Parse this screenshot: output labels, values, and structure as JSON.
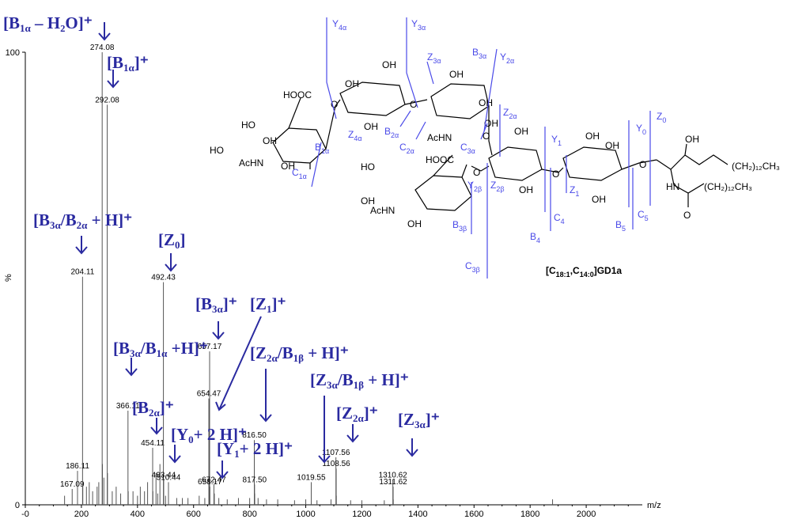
{
  "chart_data": {
    "type": "bar",
    "title": "",
    "xlabel": "m/z",
    "ylabel": "%",
    "xlim": [
      0,
      2200
    ],
    "ylim": [
      0,
      100
    ],
    "x_ticks": [
      "-0",
      "200",
      "400",
      "600",
      "800",
      "1000",
      "1200",
      "1400",
      "1600",
      "1800",
      "2000"
    ],
    "y_ticks": [
      "0",
      "100"
    ],
    "peaks": [
      {
        "x": 167.09,
        "y": 3.5,
        "label": "167.09"
      },
      {
        "x": 186.11,
        "y": 7.5,
        "label": "186.11"
      },
      {
        "x": 204.11,
        "y": 50.4,
        "label": "204.11"
      },
      {
        "x": 274.08,
        "y": 100,
        "label": "274.08"
      },
      {
        "x": 292.08,
        "y": 88.4,
        "label": "292.08"
      },
      {
        "x": 366.11,
        "y": 20.8,
        "label": "366.11"
      },
      {
        "x": 454.11,
        "y": 12.6,
        "label": "454.11"
      },
      {
        "x": 492.43,
        "y": 49.2,
        "label": "492.43"
      },
      {
        "x": 493.44,
        "y": 5.5,
        "label": "493.44"
      },
      {
        "x": 510.44,
        "y": 5.0,
        "label": "510.44"
      },
      {
        "x": 654.47,
        "y": 23.5,
        "label": "654.47"
      },
      {
        "x": 657.17,
        "y": 33.9,
        "label": "657.17"
      },
      {
        "x": 658.17,
        "y": 4.0,
        "label": "658.17"
      },
      {
        "x": 672.47,
        "y": 4.5,
        "label": "672.47"
      },
      {
        "x": 816.5,
        "y": 14.3,
        "label": "816.50"
      },
      {
        "x": 817.5,
        "y": 4.5,
        "label": "817.50"
      },
      {
        "x": 1019.55,
        "y": 5.0,
        "label": "1019.55"
      },
      {
        "x": 1107.56,
        "y": 10.5,
        "label": "1107.56"
      },
      {
        "x": 1108.56,
        "y": 8.0,
        "label": "1108.56"
      },
      {
        "x": 1310.62,
        "y": 5.5,
        "label": "1310.62"
      },
      {
        "x": 1311.62,
        "y": 4.0,
        "label": "1311.62"
      }
    ],
    "minor_peaks": [
      {
        "x": 140,
        "y": 2
      },
      {
        "x": 205,
        "y": 5
      },
      {
        "x": 218,
        "y": 4
      },
      {
        "x": 228,
        "y": 5
      },
      {
        "x": 240,
        "y": 3
      },
      {
        "x": 256,
        "y": 4
      },
      {
        "x": 262,
        "y": 5
      },
      {
        "x": 275,
        "y": 9
      },
      {
        "x": 280,
        "y": 6
      },
      {
        "x": 293,
        "y": 7
      },
      {
        "x": 310,
        "y": 3
      },
      {
        "x": 324,
        "y": 4
      },
      {
        "x": 340,
        "y": 2.5
      },
      {
        "x": 367,
        "y": 3
      },
      {
        "x": 384,
        "y": 3
      },
      {
        "x": 400,
        "y": 2
      },
      {
        "x": 410,
        "y": 4
      },
      {
        "x": 425,
        "y": 3
      },
      {
        "x": 436,
        "y": 5
      },
      {
        "x": 455,
        "y": 3
      },
      {
        "x": 466,
        "y": 7
      },
      {
        "x": 472,
        "y": 2.5
      },
      {
        "x": 480,
        "y": 9
      },
      {
        "x": 500,
        "y": 2
      },
      {
        "x": 540,
        "y": 1.5
      },
      {
        "x": 560,
        "y": 1.5
      },
      {
        "x": 580,
        "y": 1.5
      },
      {
        "x": 620,
        "y": 2
      },
      {
        "x": 640,
        "y": 1.5
      },
      {
        "x": 656,
        "y": 6
      },
      {
        "x": 674,
        "y": 2.5
      },
      {
        "x": 690,
        "y": 1.5
      },
      {
        "x": 720,
        "y": 1.2
      },
      {
        "x": 760,
        "y": 1.5
      },
      {
        "x": 800,
        "y": 1.5
      },
      {
        "x": 818,
        "y": 2.5
      },
      {
        "x": 830,
        "y": 1.5
      },
      {
        "x": 860,
        "y": 1.2
      },
      {
        "x": 900,
        "y": 1.2
      },
      {
        "x": 960,
        "y": 1
      },
      {
        "x": 1000,
        "y": 1.2
      },
      {
        "x": 1040,
        "y": 1
      },
      {
        "x": 1090,
        "y": 1.2
      },
      {
        "x": 1109,
        "y": 2
      },
      {
        "x": 1160,
        "y": 1
      },
      {
        "x": 1200,
        "y": 1
      },
      {
        "x": 1280,
        "y": 1
      },
      {
        "x": 1312,
        "y": 1.2
      },
      {
        "x": 1880,
        "y": 1.2
      }
    ],
    "annotations": [
      {
        "pre": "[B",
        "sub": "1α",
        "post": " – H₂O]⁺"
      },
      {
        "pre": "[B",
        "sub": "1α",
        "post": "]⁺"
      },
      {
        "pre": "[B",
        "sub": "3α",
        "post": "/B",
        "sub2": "2α",
        "post2": " + H]⁺"
      },
      {
        "pre": "[Z",
        "sub": "0",
        "post": "]"
      },
      {
        "pre": "[B",
        "sub": "3α",
        "post": "]⁺"
      },
      {
        "pre": "[Z",
        "sub": "1",
        "post": "]⁺"
      },
      {
        "pre": "[B",
        "sub": "3α",
        "post": "/B",
        "sub2": "1α",
        "post2": " +H]⁺"
      },
      {
        "pre": "[Z",
        "sub": "2α",
        "post": "/B",
        "sub2": "1β",
        "post2": " + H]⁺"
      },
      {
        "pre": "[Z",
        "sub": "3α",
        "post": "/B",
        "sub2": "1β",
        "post2": " + H]⁺"
      },
      {
        "pre": "[B",
        "sub": "2α",
        "post": "]⁺"
      },
      {
        "pre": "[Y",
        "sub": "0",
        "post": "+ 2 H]⁺"
      },
      {
        "pre": "[Y",
        "sub": "1",
        "post": "+ 2 H]⁺"
      },
      {
        "pre": "[Z",
        "sub": "2α",
        "post": "]⁺"
      },
      {
        "pre": "[Z",
        "sub": "3α",
        "post": "]⁺"
      }
    ]
  },
  "structure": {
    "caption_pre": "[C",
    "caption_sub1": "18:1",
    "caption_mid": ",C",
    "caption_sub2": "14:0",
    "caption_post": "]GD1a",
    "fragments": [
      {
        "base": "Y",
        "sub": "4α"
      },
      {
        "base": "Y",
        "sub": "3α"
      },
      {
        "base": "Z",
        "sub": "3α"
      },
      {
        "base": "B",
        "sub": "3α"
      },
      {
        "base": "Y",
        "sub": "2α"
      },
      {
        "base": "Z",
        "sub": "4α"
      },
      {
        "base": "B",
        "sub": "2α"
      },
      {
        "base": "C",
        "sub": "2α"
      },
      {
        "base": "Z",
        "sub": "2α"
      },
      {
        "base": "C",
        "sub": "3α"
      },
      {
        "base": "B",
        "sub": "1α"
      },
      {
        "base": "C",
        "sub": "1α"
      },
      {
        "base": "Y",
        "sub": "1"
      },
      {
        "base": "Y",
        "sub": "0"
      },
      {
        "base": "Z",
        "sub": "0"
      },
      {
        "base": "Y",
        "sub": "2β"
      },
      {
        "base": "Z",
        "sub": "2β"
      },
      {
        "base": "Z",
        "sub": "1"
      },
      {
        "base": "B",
        "sub": "3β"
      },
      {
        "base": "C",
        "sub": "3β"
      },
      {
        "base": "B",
        "sub": "4"
      },
      {
        "base": "C",
        "sub": "4"
      },
      {
        "base": "B",
        "sub": "5"
      },
      {
        "base": "C",
        "sub": "5"
      }
    ],
    "groups": [
      {
        "text": "HOOC"
      },
      {
        "text": "HO"
      },
      {
        "text": "OH"
      },
      {
        "text": "AcHN"
      },
      {
        "text": "OH"
      },
      {
        "text": "HO"
      },
      {
        "text": "OH"
      },
      {
        "text": "OH"
      },
      {
        "text": "OH"
      },
      {
        "text": "AcHN"
      },
      {
        "text": "OH"
      },
      {
        "text": "O"
      },
      {
        "text": "O"
      },
      {
        "text": "O"
      },
      {
        "text": "OH"
      },
      {
        "text": "HOOC"
      },
      {
        "text": "HO"
      },
      {
        "text": "OH"
      },
      {
        "text": "AcHN"
      },
      {
        "text": "OH"
      },
      {
        "text": "OH"
      },
      {
        "text": "O"
      },
      {
        "text": "OH"
      },
      {
        "text": "OH"
      },
      {
        "text": "O"
      },
      {
        "text": "OH"
      },
      {
        "text": "OH"
      },
      {
        "text": "O"
      },
      {
        "text": "OH"
      },
      {
        "text": "HN"
      },
      {
        "text": "O"
      },
      {
        "text": "(CH₂)₁₂CH₃"
      },
      {
        "text": "(CH₂)₁₂CH₃"
      },
      {
        "text": "OH"
      }
    ]
  },
  "colors": {
    "annotation": "#2a2aa0",
    "fragment_line": "#4a4ae8",
    "peak": "#555555",
    "axis": "#000000"
  }
}
